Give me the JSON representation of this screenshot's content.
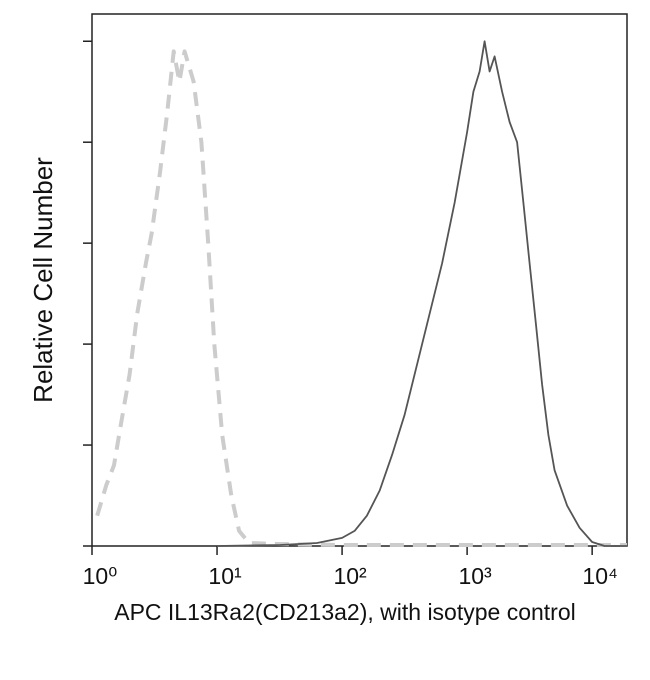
{
  "chart_data": {
    "type": "line",
    "xlabel": "APC IL13Ra2(CD213a2), with isotype control",
    "ylabel": "Relative Cell Number",
    "xscale": "log",
    "xlim": [
      1,
      19000
    ],
    "ylim": [
      0,
      5.27
    ],
    "xticks": [
      {
        "value": 1,
        "label": "10⁰"
      },
      {
        "value": 10,
        "label": "10¹"
      },
      {
        "value": 100,
        "label": "10²"
      },
      {
        "value": 1000,
        "label": "10³"
      },
      {
        "value": 10000,
        "label": "10⁴"
      }
    ],
    "yticks": [
      0,
      1,
      2,
      3,
      4,
      5
    ],
    "series": [
      {
        "color": "#cccccc",
        "dashed": true,
        "x": [
          1.1,
          1.3,
          1.5,
          1.7,
          2.0,
          2.3,
          2.7,
          3.0,
          3.5,
          4.0,
          4.5,
          5.0,
          5.5,
          6.5,
          7.5,
          8.5,
          9.5,
          11,
          13,
          15,
          18,
          30,
          100,
          1000,
          19000
        ],
        "values": [
          0.3,
          0.6,
          0.8,
          1.2,
          1.7,
          2.3,
          2.8,
          3.1,
          3.7,
          4.3,
          4.9,
          4.6,
          4.9,
          4.6,
          4.0,
          3.0,
          2.0,
          1.1,
          0.5,
          0.15,
          0.03,
          0.02,
          0.01,
          0.01,
          0.01
        ]
      },
      {
        "color": "#555555",
        "dashed": false,
        "x": [
          10,
          32,
          63,
          100,
          126,
          158,
          200,
          251,
          316,
          398,
          501,
          631,
          794,
          1000,
          1122,
          1259,
          1380,
          1514,
          1660,
          1905,
          2188,
          2512,
          2818,
          3162,
          3548,
          3981,
          4467,
          5012,
          6310,
          7943,
          10000,
          12589,
          19000
        ],
        "values": [
          0.0,
          0.01,
          0.03,
          0.08,
          0.15,
          0.3,
          0.55,
          0.9,
          1.3,
          1.8,
          2.3,
          2.8,
          3.4,
          4.1,
          4.5,
          4.7,
          5.0,
          4.7,
          4.85,
          4.5,
          4.2,
          4.0,
          3.4,
          2.8,
          2.2,
          1.6,
          1.1,
          0.75,
          0.4,
          0.18,
          0.04,
          0.0,
          0.0
        ]
      }
    ]
  }
}
